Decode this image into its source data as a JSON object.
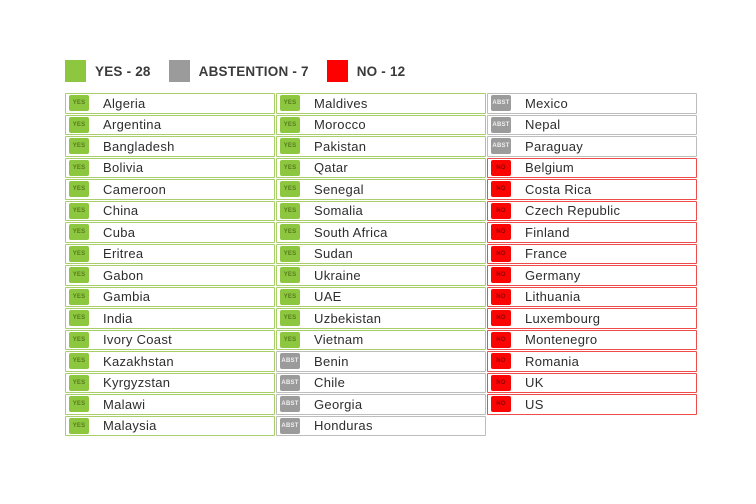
{
  "legend": {
    "items": [
      {
        "label": "YES - 28",
        "type": "yes",
        "color": "#8DC63F"
      },
      {
        "label": "ABSTENTION - 7",
        "type": "abstention",
        "color": "#9B9B9B"
      },
      {
        "label": "NO - 12",
        "type": "no",
        "color": "#FF0000"
      }
    ]
  },
  "badge_labels": {
    "yes": "YES",
    "abstention": "ABST",
    "no": "NO"
  },
  "colors": {
    "yes_badge": "#8DC63F",
    "yes_border": "#A9CF6B",
    "yes_badge_text": "#567C1D",
    "abstention_badge": "#9B9B9B",
    "abstention_border": "#BDBDBD",
    "abstention_badge_text": "#EFEFEF",
    "no_badge": "#FB0404",
    "no_border": "#EE4B4B",
    "no_badge_text": "#930000",
    "country_text": "#2D2D2D",
    "legend_text": "#3B3B3B"
  },
  "columns": [
    [
      {
        "country": "Algeria",
        "vote": "yes"
      },
      {
        "country": "Argentina",
        "vote": "yes"
      },
      {
        "country": "Bangladesh",
        "vote": "yes"
      },
      {
        "country": "Bolivia",
        "vote": "yes"
      },
      {
        "country": "Cameroon",
        "vote": "yes"
      },
      {
        "country": "China",
        "vote": "yes"
      },
      {
        "country": "Cuba",
        "vote": "yes"
      },
      {
        "country": "Eritrea",
        "vote": "yes"
      },
      {
        "country": "Gabon",
        "vote": "yes"
      },
      {
        "country": "Gambia",
        "vote": "yes"
      },
      {
        "country": "India",
        "vote": "yes"
      },
      {
        "country": "Ivory Coast",
        "vote": "yes"
      },
      {
        "country": "Kazakhstan",
        "vote": "yes"
      },
      {
        "country": "Kyrgyzstan",
        "vote": "yes"
      },
      {
        "country": "Malawi",
        "vote": "yes"
      },
      {
        "country": "Malaysia",
        "vote": "yes"
      }
    ],
    [
      {
        "country": "Maldives",
        "vote": "yes"
      },
      {
        "country": "Morocco",
        "vote": "yes"
      },
      {
        "country": "Pakistan",
        "vote": "yes"
      },
      {
        "country": "Qatar",
        "vote": "yes"
      },
      {
        "country": "Senegal",
        "vote": "yes"
      },
      {
        "country": "Somalia",
        "vote": "yes"
      },
      {
        "country": "South Africa",
        "vote": "yes"
      },
      {
        "country": "Sudan",
        "vote": "yes"
      },
      {
        "country": "Ukraine",
        "vote": "yes"
      },
      {
        "country": "UAE",
        "vote": "yes"
      },
      {
        "country": "Uzbekistan",
        "vote": "yes"
      },
      {
        "country": "Vietnam",
        "vote": "yes"
      },
      {
        "country": "Benin",
        "vote": "abstention"
      },
      {
        "country": "Chile",
        "vote": "abstention"
      },
      {
        "country": "Georgia",
        "vote": "abstention"
      },
      {
        "country": "Honduras",
        "vote": "abstention"
      }
    ],
    [
      {
        "country": "Mexico",
        "vote": "abstention"
      },
      {
        "country": "Nepal",
        "vote": "abstention"
      },
      {
        "country": "Paraguay",
        "vote": "abstention"
      },
      {
        "country": "Belgium",
        "vote": "no"
      },
      {
        "country": "Costa Rica",
        "vote": "no"
      },
      {
        "country": "Czech Republic",
        "vote": "no"
      },
      {
        "country": "Finland",
        "vote": "no"
      },
      {
        "country": "France",
        "vote": "no"
      },
      {
        "country": "Germany",
        "vote": "no"
      },
      {
        "country": "Lithuania",
        "vote": "no"
      },
      {
        "country": "Luxembourg",
        "vote": "no"
      },
      {
        "country": "Montenegro",
        "vote": "no"
      },
      {
        "country": "Romania",
        "vote": "no"
      },
      {
        "country": "UK",
        "vote": "no"
      },
      {
        "country": "US",
        "vote": "no"
      }
    ]
  ],
  "chart_data": {
    "type": "table",
    "title": "",
    "legend_entries": [
      "YES - 28",
      "ABSTENTION - 7",
      "NO - 12"
    ],
    "summary": [
      {
        "category": "YES",
        "count": 28,
        "color": "#8DC63F"
      },
      {
        "category": "ABSTENTION",
        "count": 7,
        "color": "#9B9B9B"
      },
      {
        "category": "NO",
        "count": 12,
        "color": "#FF0000"
      }
    ],
    "groups": {
      "YES": [
        "Algeria",
        "Argentina",
        "Bangladesh",
        "Bolivia",
        "Cameroon",
        "China",
        "Cuba",
        "Eritrea",
        "Gabon",
        "Gambia",
        "India",
        "Ivory Coast",
        "Kazakhstan",
        "Kyrgyzstan",
        "Malawi",
        "Malaysia",
        "Maldives",
        "Morocco",
        "Pakistan",
        "Qatar",
        "Senegal",
        "Somalia",
        "South Africa",
        "Sudan",
        "Ukraine",
        "UAE",
        "Uzbekistan",
        "Vietnam"
      ],
      "ABSTENTION": [
        "Benin",
        "Chile",
        "Georgia",
        "Honduras",
        "Mexico",
        "Nepal",
        "Paraguay"
      ],
      "NO": [
        "Belgium",
        "Costa Rica",
        "Czech Republic",
        "Finland",
        "France",
        "Germany",
        "Lithuania",
        "Luxembourg",
        "Montenegro",
        "Romania",
        "UK",
        "US"
      ]
    },
    "layout": "three-column list, filled column-wise, cell border color matches vote category"
  }
}
